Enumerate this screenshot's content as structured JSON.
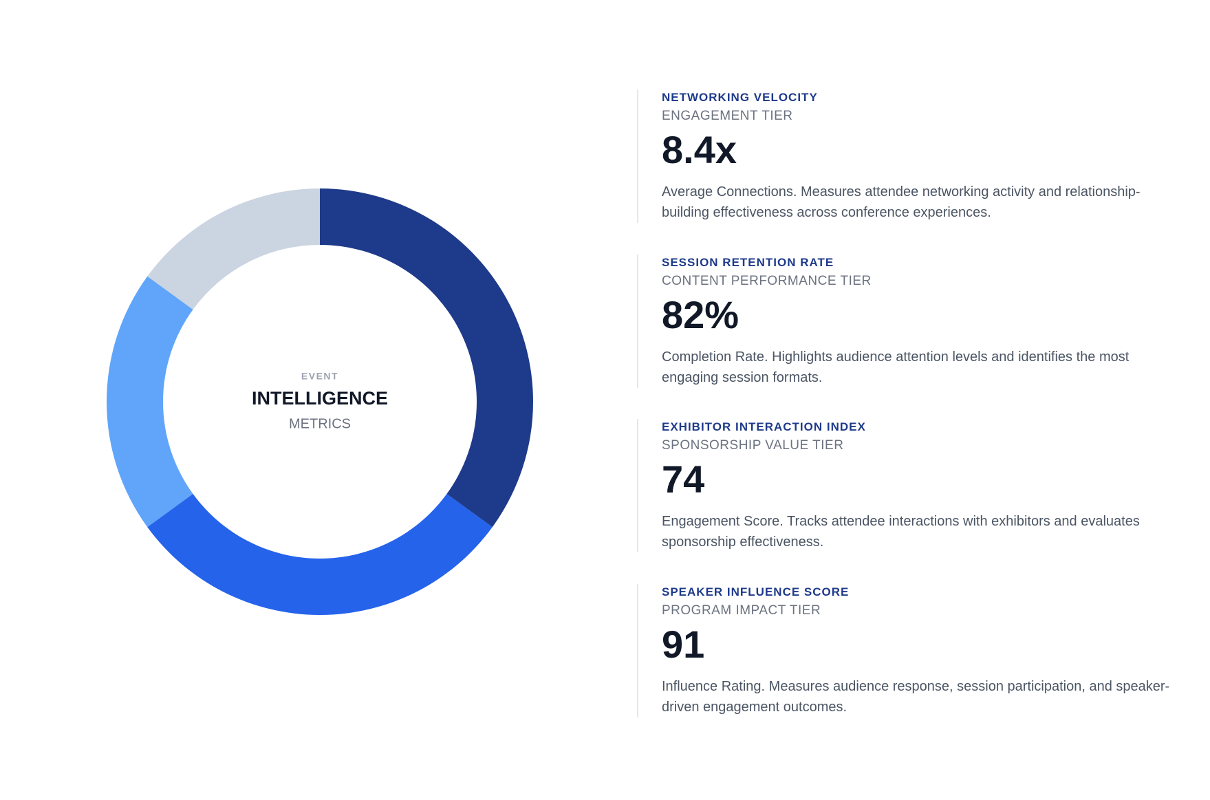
{
  "ring": {
    "values": [
      35,
      30,
      20,
      15
    ],
    "colors": [
      "#1e3a8a",
      "#2563eb",
      "#60a5fa",
      "#cbd5e1"
    ]
  },
  "center": {
    "top": "EVENT",
    "title": "INTELLIGENCE",
    "bottom": "METRICS"
  },
  "metrics": [
    {
      "title": "NETWORKING VELOCITY",
      "tier": "ENGAGEMENT TIER",
      "value": "8.4x",
      "description": "Average Connections. Measures attendee networking activity and relationship-building effectiveness across conference experiences."
    },
    {
      "title": "SESSION RETENTION RATE",
      "tier": "CONTENT PERFORMANCE TIER",
      "value": "82%",
      "description": "Completion Rate. Highlights audience attention levels and identifies the most engaging session formats."
    },
    {
      "title": "EXHIBITOR INTERACTION INDEX",
      "tier": "SPONSORSHIP VALUE TIER",
      "value": "74",
      "description": "Engagement Score. Tracks attendee interactions with exhibitors and evaluates sponsorship effectiveness."
    },
    {
      "title": "SPEAKER INFLUENCE SCORE",
      "tier": "PROGRAM IMPACT TIER",
      "value": "91",
      "description": "Influence Rating. Measures audience response, session participation, and speaker-driven engagement outcomes."
    }
  ]
}
